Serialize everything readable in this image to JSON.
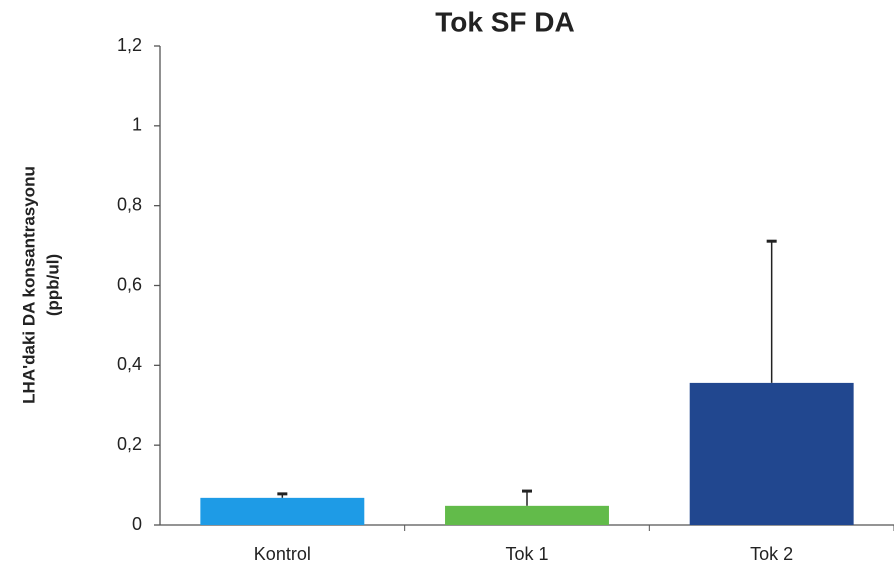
{
  "chart_data": {
    "type": "bar",
    "title": "Tok SF DA",
    "ylabel": [
      "LHA'daki DA konsantrasyonu",
      "(ppb/ul)"
    ],
    "categories": [
      "Kontrol",
      "Tok 1",
      "Tok 2"
    ],
    "values": [
      0.068,
      0.048,
      0.356
    ],
    "errors": [
      0.01,
      0.037,
      0.355
    ],
    "colors": [
      "#1e9be6",
      "#62bb4a",
      "#21478f"
    ],
    "ylim": [
      0,
      1.2
    ],
    "yticks": [
      0,
      {
        "value": 0.2,
        "label": "0,2"
      },
      {
        "value": 0.4,
        "label": "0,4"
      },
      {
        "value": 0.6,
        "label": "0,6"
      },
      {
        "value": 0.8,
        "label": "0,8"
      },
      1,
      {
        "value": 1.2,
        "label": "1,2"
      }
    ],
    "grid": false
  }
}
